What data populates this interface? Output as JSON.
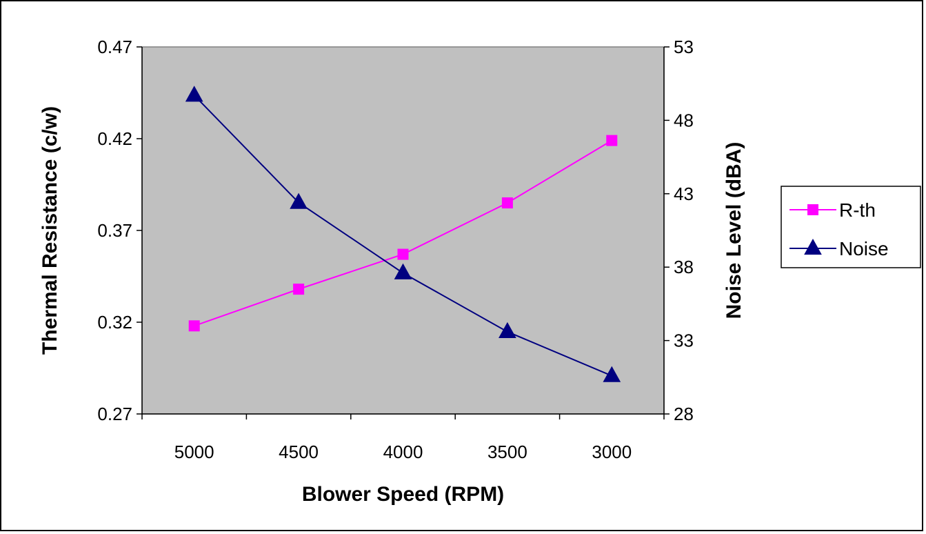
{
  "chart_data": {
    "type": "line",
    "title": "",
    "xlabel": "Blower Speed (RPM)",
    "ylabel": "Thermal Resistance (c/w)",
    "y2label": "Noise Level (dBA)",
    "categories": [
      "5000",
      "4500",
      "4000",
      "3500",
      "3000"
    ],
    "ylim": [
      0.27,
      0.47
    ],
    "yticks": [
      "0.27",
      "0.32",
      "0.37",
      "0.42",
      "0.47"
    ],
    "y2lim": [
      28,
      53
    ],
    "y2ticks": [
      "28",
      "33",
      "38",
      "43",
      "48",
      "53"
    ],
    "grid": false,
    "legend": "right",
    "plot_background": "#C0C0C0",
    "series": [
      {
        "name": "R-th",
        "axis": "left",
        "color": "#FF00FF",
        "marker": "square",
        "values": [
          0.318,
          0.338,
          0.357,
          0.385,
          0.419
        ]
      },
      {
        "name": "Noise",
        "axis": "right",
        "color": "#000080",
        "marker": "triangle",
        "values": [
          49.7,
          42.4,
          37.6,
          33.6,
          30.6
        ]
      }
    ]
  }
}
